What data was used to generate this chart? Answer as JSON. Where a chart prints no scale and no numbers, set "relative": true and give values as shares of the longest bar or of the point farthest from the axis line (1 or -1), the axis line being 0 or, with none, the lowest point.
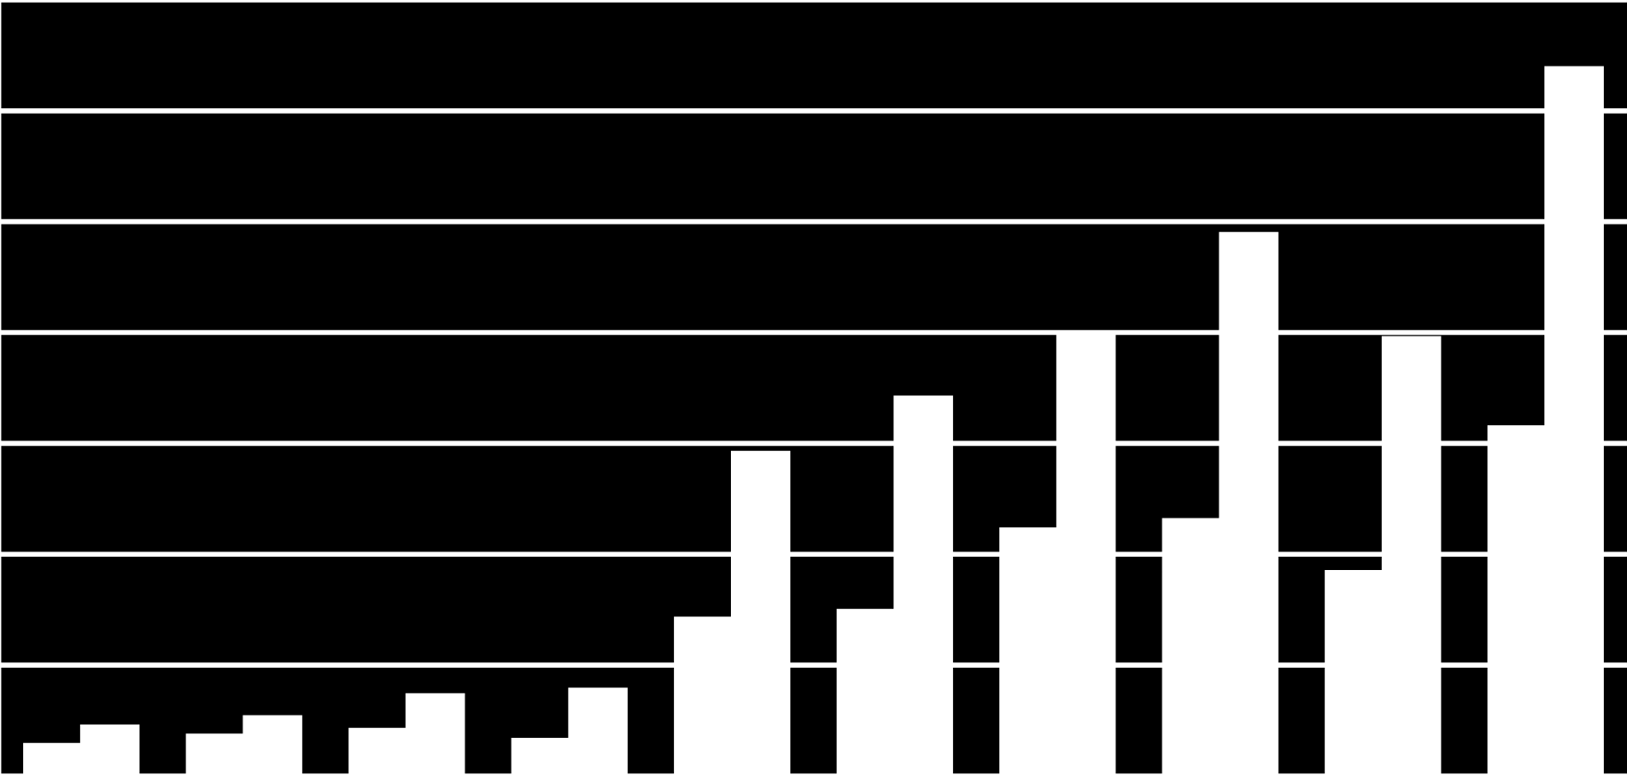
{
  "chart_data": {
    "type": "bar",
    "relative": true,
    "grid": "y",
    "categories": [
      null,
      null,
      null,
      null,
      null,
      null,
      null,
      null,
      null,
      null
    ],
    "series": [
      {
        "color": "#ffffff",
        "values": [
          0.045,
          0.058,
          0.066,
          0.052,
          0.223,
          0.234,
          0.349,
          0.362,
          0.289,
          0.493
        ]
      },
      {
        "color": "#ffffff",
        "values": [
          0.071,
          0.084,
          0.115,
          0.123,
          0.457,
          0.535,
          0.627,
          0.766,
          0.619,
          1.0
        ]
      }
    ]
  }
}
